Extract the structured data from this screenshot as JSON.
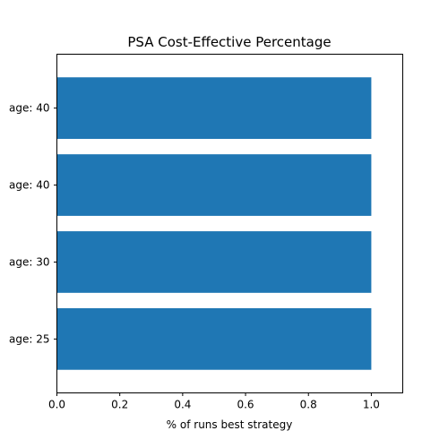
{
  "chart_data": {
    "type": "bar",
    "orientation": "horizontal",
    "title": "PSA Cost-Effective Percentage",
    "xlabel": "% of runs best strategy",
    "ylabel": "",
    "xlim": [
      0,
      1.1
    ],
    "x_ticks": [
      "0.0",
      "0.2",
      "0.4",
      "0.6",
      "0.8",
      "1.0"
    ],
    "categories": [
      "age: 25",
      "age: 30",
      "age: 40",
      "age: 40"
    ],
    "values": [
      1.0,
      1.0,
      1.0,
      1.0
    ],
    "bar_color": "#1f77b4",
    "grid": false
  }
}
